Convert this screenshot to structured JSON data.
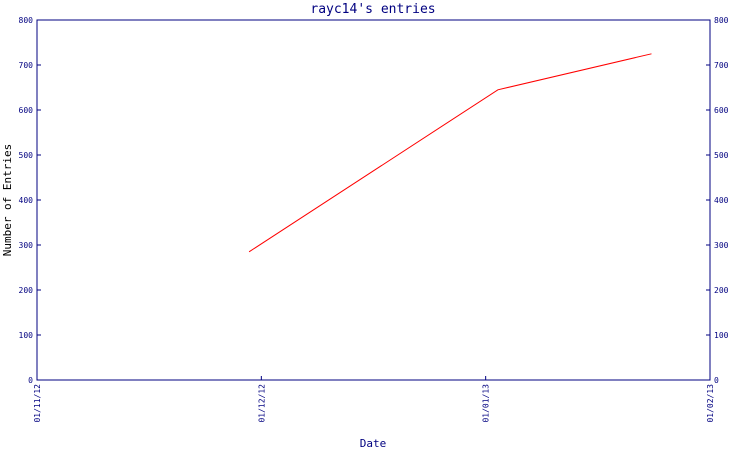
{
  "chart_data": {
    "type": "line",
    "title": "rayc14's entries",
    "xlabel": "Date",
    "ylabel": "Number of Entries",
    "x_ticks": [
      "01/11/12",
      "01/12/12",
      "01/01/13",
      "01/02/13"
    ],
    "x_range": [
      "2012-11-01",
      "2013-02-01"
    ],
    "ylim": [
      0,
      800
    ],
    "y_ticks": [
      0,
      100,
      200,
      300,
      400,
      500,
      600,
      700,
      800
    ],
    "y_axis_right_mirrored": true,
    "grid": false,
    "series": [
      {
        "x": [
          "2012-11-30",
          "2013-01-03",
          "2013-01-24"
        ],
        "y": [
          285,
          645,
          725
        ],
        "color": "#ff0000"
      }
    ],
    "colors": {
      "axis": "#000080",
      "title": "#000080",
      "line": "#ff0000"
    }
  }
}
